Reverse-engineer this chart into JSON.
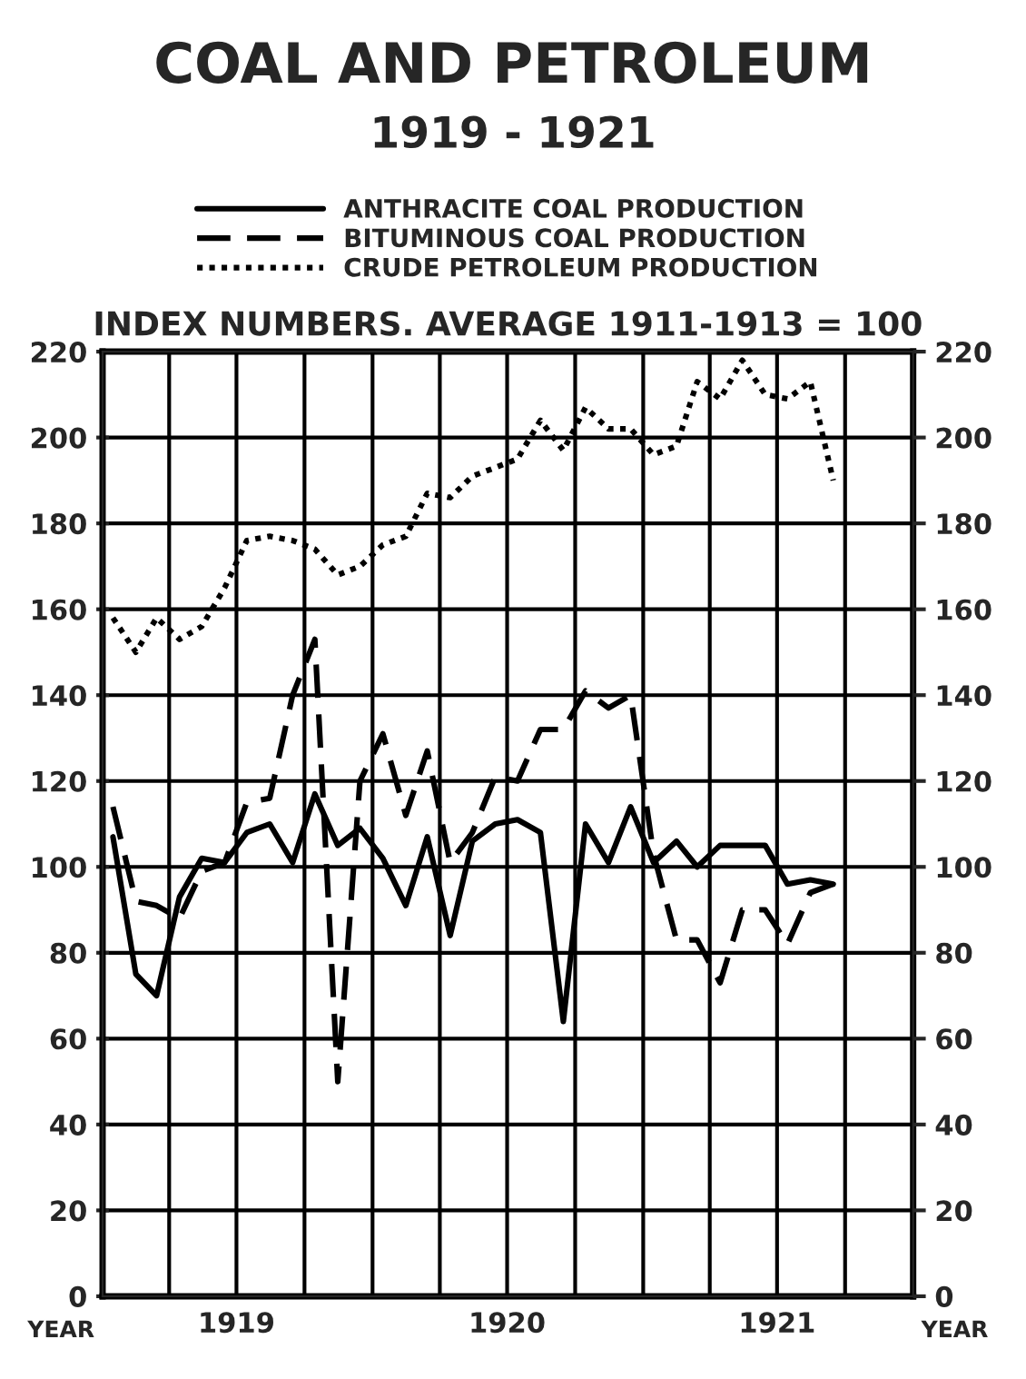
{
  "chart_data": {
    "type": "line",
    "title": "COAL AND PETROLEUM",
    "subtitle": "1919 - 1921",
    "ylabel": "INDEX NUMBERS. AVERAGE 1911-1913 = 100",
    "xlabel": "YEAR",
    "x": [
      "1919-01-15",
      "1919-02-15",
      "1919-03-15",
      "1919-04-15",
      "1919-05-15",
      "1919-06-15",
      "1919-07-15",
      "1919-08-15",
      "1919-09-15",
      "1919-10-15",
      "1919-11-15",
      "1919-12-15",
      "1920-01-15",
      "1920-02-15",
      "1920-03-15",
      "1920-04-15",
      "1920-05-15",
      "1920-06-15",
      "1920-07-15",
      "1920-08-15",
      "1920-09-15",
      "1920-10-15",
      "1920-11-15",
      "1920-12-15",
      "1921-01-15",
      "1921-02-15",
      "1921-03-15",
      "1921-04-15",
      "1921-05-15",
      "1921-06-15",
      "1921-07-15",
      "1921-08-15",
      "1921-09-15"
    ],
    "series": [
      {
        "name": "ANTHRACITE COAL PRODUCTION",
        "color": "#000000",
        "line_style": "solid",
        "values": [
          107,
          75,
          70,
          93,
          102,
          101,
          108,
          110,
          101,
          117,
          105,
          109,
          102,
          91,
          107,
          84,
          106,
          110,
          111,
          108,
          64,
          110,
          101,
          114,
          101,
          106,
          100,
          105,
          105,
          105,
          96,
          97,
          96
        ]
      },
      {
        "name": "BITUMINOUS COAL PRODUCTION",
        "color": "#000000",
        "line_style": "dashed",
        "values": [
          114,
          92,
          91,
          88,
          99,
          101,
          115,
          116,
          140,
          153,
          50,
          120,
          131,
          112,
          127,
          101,
          108,
          121,
          120,
          132,
          132,
          141,
          137,
          140,
          103,
          83,
          83,
          73,
          90,
          90,
          82,
          94,
          96
        ]
      },
      {
        "name": "CRUDE PETROLEUM PRODUCTION",
        "color": "#000000",
        "line_style": "dotted",
        "values": [
          158,
          150,
          158,
          153,
          156,
          165,
          176,
          177,
          176,
          174,
          168,
          170,
          175,
          177,
          187,
          186,
          191,
          193,
          195,
          204,
          197,
          207,
          202,
          202,
          196,
          198,
          213,
          209,
          218,
          210,
          209,
          213,
          190
        ]
      }
    ],
    "xlim": [
      "1919-01-01",
      "1922-01-01"
    ],
    "xticks": [
      {
        "value": "1919-01-01",
        "label": null
      },
      {
        "value": "1919-04-01",
        "label": null
      },
      {
        "value": "1919-07-01",
        "label": "1919"
      },
      {
        "value": "1919-10-01",
        "label": null
      },
      {
        "value": "1920-01-01",
        "label": null
      },
      {
        "value": "1920-04-01",
        "label": null
      },
      {
        "value": "1920-07-01",
        "label": "1920"
      },
      {
        "value": "1920-10-01",
        "label": null
      },
      {
        "value": "1921-01-01",
        "label": null
      },
      {
        "value": "1921-04-01",
        "label": null
      },
      {
        "value": "1921-07-01",
        "label": "1921"
      },
      {
        "value": "1921-10-01",
        "label": null
      },
      {
        "value": "1922-01-01",
        "label": null
      }
    ],
    "ylim": [
      0,
      220
    ],
    "yticks": [
      0,
      20,
      40,
      60,
      80,
      100,
      120,
      140,
      160,
      180,
      200,
      220
    ],
    "y2lim": [
      0,
      220
    ],
    "y2ticks": [
      0,
      20,
      40,
      60,
      80,
      100,
      120,
      140,
      160,
      180,
      200,
      220
    ],
    "grid": true,
    "legend": "top",
    "marker": "none"
  }
}
